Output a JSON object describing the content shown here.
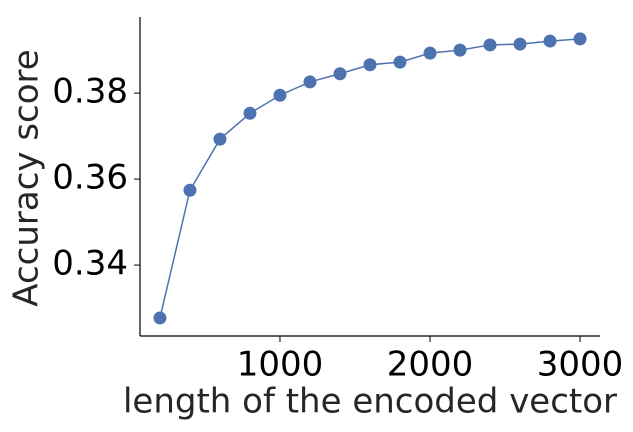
{
  "chart_data": {
    "type": "line",
    "x_label": "length of the encoded vector",
    "y_label": "Accuracy score",
    "x": [
      200,
      400,
      600,
      800,
      1000,
      1200,
      1400,
      1600,
      1800,
      2000,
      2200,
      2400,
      2600,
      2800,
      3000
    ],
    "series": [
      {
        "name": "Accuracy score",
        "color": "#4c72b0",
        "values": [
          0.3277,
          0.3574,
          0.3693,
          0.3753,
          0.3795,
          0.3826,
          0.3845,
          0.3866,
          0.3872,
          0.3893,
          0.39,
          0.3912,
          0.3914,
          0.3921,
          0.3926
        ]
      }
    ],
    "xlim": [
      67,
      3133
    ],
    "xticks": [
      1000,
      2000,
      3000
    ],
    "ylim": [
      0.3235,
      0.3977
    ],
    "yticks": [
      0.34,
      0.36,
      0.38
    ]
  }
}
